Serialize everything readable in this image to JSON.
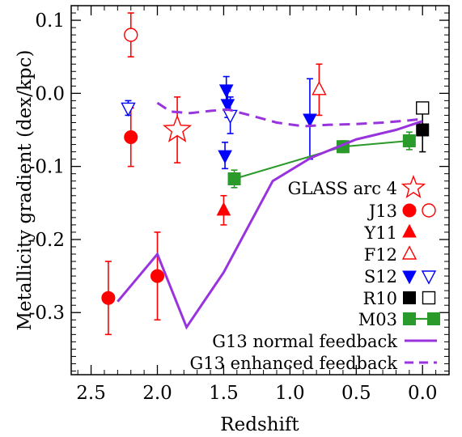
{
  "chart_data": {
    "type": "scatter",
    "xlabel": "Redshift",
    "ylabel": "Metallicity gradient (dex/kpc)",
    "xlim": [
      2.65,
      -0.2
    ],
    "ylim": [
      -0.385,
      0.12
    ],
    "xticks": [
      2.5,
      2.0,
      1.5,
      1.0,
      0.5,
      0.0
    ],
    "xtick_labels": [
      "2.5",
      "2.0",
      "1.5",
      "1.0",
      "0.5",
      "0.0"
    ],
    "yticks": [
      0.1,
      0.0,
      -0.1,
      -0.2,
      -0.3
    ],
    "ytick_labels": [
      "0.1",
      "0.0",
      "-0.1",
      "-0.2",
      "-0.3"
    ],
    "legend_position": "bottom-right",
    "series": [
      {
        "name": "GLASS arc 4",
        "marker": "star-open",
        "color": "#ff0000",
        "points": [
          {
            "x": 1.85,
            "y": -0.05,
            "yerr": [
              0.045,
              0.045
            ]
          }
        ]
      },
      {
        "name": "J13",
        "marker": "circle",
        "color": "#ff0000",
        "points": [
          {
            "x": 2.37,
            "y": -0.28,
            "yerr": [
              0.05,
              0.05
            ]
          },
          {
            "x": 2.2,
            "y": -0.06,
            "yerr": [
              0.04,
              0.04
            ]
          },
          {
            "x": 2.0,
            "y": -0.25,
            "yerr": [
              0.06,
              0.06
            ]
          }
        ]
      },
      {
        "name": "J13 (open)",
        "marker": "circle-open",
        "color": "#ff0000",
        "points": [
          {
            "x": 2.2,
            "y": 0.08,
            "yerr": [
              0.03,
              0.03
            ]
          }
        ]
      },
      {
        "name": "Y11",
        "marker": "triangle-up",
        "color": "#ff0000",
        "points": [
          {
            "x": 1.5,
            "y": -0.16,
            "yerr": [
              0.02,
              0.02
            ]
          }
        ]
      },
      {
        "name": "F12",
        "marker": "triangle-up-open",
        "color": "#ff0000",
        "points": [
          {
            "x": 0.78,
            "y": 0.005,
            "yerr": [
              0.035,
              0.035
            ]
          }
        ]
      },
      {
        "name": "S12",
        "marker": "triangle-down",
        "color": "#0000ff",
        "points": [
          {
            "x": 1.48,
            "y": 0.005,
            "yerr": [
              0.018,
              0.018
            ]
          },
          {
            "x": 1.47,
            "y": -0.015,
            "yerr": [
              0.018,
              0.018
            ]
          },
          {
            "x": 1.49,
            "y": -0.085,
            "yerr": [
              0.018,
              0.018
            ]
          },
          {
            "x": 0.85,
            "y": -0.035,
            "yerr": [
              0.055,
              0.055
            ]
          }
        ]
      },
      {
        "name": "S12 (open)",
        "marker": "triangle-down-open",
        "color": "#0000ff",
        "points": [
          {
            "x": 2.22,
            "y": -0.02,
            "yerr": [
              0.01,
              0.01
            ]
          },
          {
            "x": 1.45,
            "y": -0.03,
            "yerr": [
              0.025,
              0.025
            ]
          }
        ]
      },
      {
        "name": "R10",
        "marker": "square",
        "color": "#000000",
        "points": [
          {
            "x": 0.0,
            "y": -0.05,
            "yerr": [
              0.03,
              0.03
            ]
          }
        ]
      },
      {
        "name": "R10 (open)",
        "marker": "square-open",
        "color": "#000000",
        "points": [
          {
            "x": 0.0,
            "y": -0.02,
            "yerr": [
              0.006,
              0.006
            ]
          }
        ]
      },
      {
        "name": "M03",
        "marker": "square",
        "line": "solid",
        "color": "#2a9a2a",
        "points": [
          {
            "x": 1.42,
            "y": -0.117,
            "yerr": [
              0.012,
              0.012
            ]
          },
          {
            "x": 0.6,
            "y": -0.073,
            "yerr": [
              0.008,
              0.008
            ]
          },
          {
            "x": 0.1,
            "y": -0.065,
            "yerr": [
              0.012,
              0.012
            ]
          }
        ]
      },
      {
        "name": "G13 normal feedback",
        "marker": "none",
        "line": "solid",
        "color": "#9933dd",
        "points": [
          {
            "x": 2.3,
            "y": -0.285
          },
          {
            "x": 2.0,
            "y": -0.22
          },
          {
            "x": 1.78,
            "y": -0.32
          },
          {
            "x": 1.5,
            "y": -0.245
          },
          {
            "x": 1.13,
            "y": -0.12
          },
          {
            "x": 0.84,
            "y": -0.088
          },
          {
            "x": 0.5,
            "y": -0.063
          },
          {
            "x": 0.2,
            "y": -0.05
          },
          {
            "x": 0.0,
            "y": -0.038
          }
        ]
      },
      {
        "name": "G13 enhanced feedback",
        "marker": "none",
        "line": "dashed",
        "color": "#9933dd",
        "points": [
          {
            "x": 2.0,
            "y": -0.013
          },
          {
            "x": 1.9,
            "y": -0.025
          },
          {
            "x": 1.75,
            "y": -0.027
          },
          {
            "x": 1.6,
            "y": -0.024
          },
          {
            "x": 1.47,
            "y": -0.022
          },
          {
            "x": 1.3,
            "y": -0.03
          },
          {
            "x": 1.1,
            "y": -0.04
          },
          {
            "x": 0.9,
            "y": -0.045
          },
          {
            "x": 0.7,
            "y": -0.043
          },
          {
            "x": 0.5,
            "y": -0.042
          },
          {
            "x": 0.3,
            "y": -0.04
          },
          {
            "x": 0.1,
            "y": -0.037
          },
          {
            "x": 0.0,
            "y": -0.035
          }
        ]
      }
    ],
    "legend": [
      {
        "label": "GLASS arc 4",
        "symbols": [
          "star-open"
        ],
        "color": "#ff0000"
      },
      {
        "label": "J13",
        "symbols": [
          "circle",
          "circle-open"
        ],
        "color": "#ff0000"
      },
      {
        "label": "Y11",
        "symbols": [
          "triangle-up"
        ],
        "color": "#ff0000"
      },
      {
        "label": "F12",
        "symbols": [
          "triangle-up-open"
        ],
        "color": "#ff0000"
      },
      {
        "label": "S12",
        "symbols": [
          "triangle-down",
          "triangle-down-open"
        ],
        "color": "#0000ff"
      },
      {
        "label": "R10",
        "symbols": [
          "square",
          "square-open"
        ],
        "color": "#000000"
      },
      {
        "label": "M03",
        "symbols": [
          "square-line-square"
        ],
        "color": "#2a9a2a"
      },
      {
        "label": "G13 normal feedback",
        "symbols": [
          "solid-line"
        ],
        "color": "#9933dd"
      },
      {
        "label": "G13 enhanced feedback",
        "symbols": [
          "dashed-line"
        ],
        "color": "#9933dd"
      }
    ]
  }
}
